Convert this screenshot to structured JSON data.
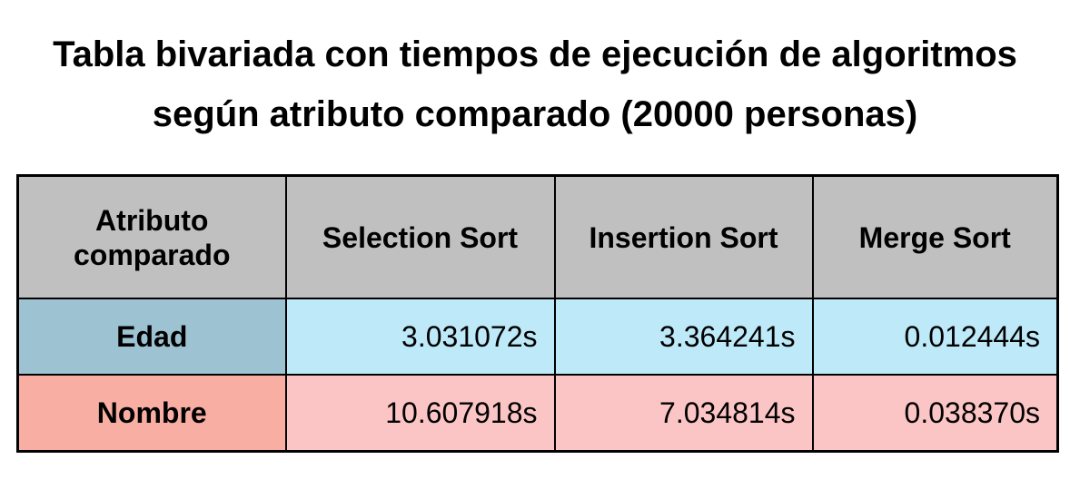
{
  "title": [
    "Tabla bivariada con tiempos de ejecución de algoritmos",
    "según atributo comparado (20000 personas)"
  ],
  "table": {
    "header": [
      "Atributo comparado",
      "Selection Sort",
      "Insertion Sort",
      "Merge Sort"
    ],
    "rows": [
      [
        "Edad",
        "3.031072s",
        "3.364241s",
        "0.012444s"
      ],
      [
        "Nombre",
        "10.607918s",
        "7.034814s",
        "0.038370s"
      ]
    ]
  }
}
